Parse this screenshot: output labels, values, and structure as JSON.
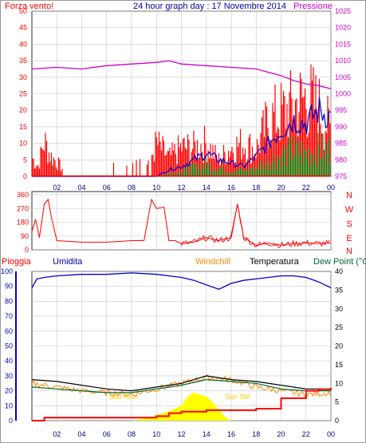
{
  "header": {
    "title": "24 hour graph day : 17 Novembre 2014",
    "left_label": "Forza vento!",
    "right_label": "Pressione"
  },
  "dir_labels": [
    "N",
    "W",
    "S",
    "E",
    "N"
  ],
  "bottom_header": {
    "pioggia": "Pioggia",
    "umidita": "Umidita",
    "windchill": "Windchill",
    "temperatura": "Temperatura",
    "dewpoint": "Dew Point (°C"
  },
  "annotations": {
    "sunrise": "Sun Rise",
    "sunset": "Sun Set"
  },
  "colors": {
    "wind": "#ff0000",
    "gust": "#ff0000",
    "wind_avg": "#0000cc",
    "wind_green": "#008000",
    "pressure": "#cc00cc",
    "direction": "#ff0000",
    "humidity": "#0000cc",
    "temperature": "#000000",
    "windchill": "#ff8800",
    "dewpoint": "#006633",
    "rain": "#ff0000",
    "rain_rate": "#ffff00",
    "grid": "#c8c8c8"
  },
  "chart_data": [
    {
      "type": "line",
      "name": "wind-pressure",
      "x_ticks": [
        "02",
        "04",
        "06",
        "08",
        "10",
        "12",
        "14",
        "16",
        "18",
        "20",
        "22",
        "00"
      ],
      "y_left_ticks": [
        0,
        5,
        10,
        15,
        20,
        25,
        30,
        35,
        40,
        45,
        50
      ],
      "y_left_range": [
        0,
        50
      ],
      "y_right_ticks": [
        975,
        980,
        985,
        990,
        995,
        1000,
        1005,
        1010,
        1015,
        1020,
        1025
      ],
      "y_right_range": [
        975,
        1025
      ],
      "pressure_hours": [
        0,
        2,
        4,
        6,
        8,
        10,
        11,
        12,
        14,
        16,
        18,
        19,
        20,
        21,
        22,
        23,
        24
      ],
      "pressure_values": [
        1007.5,
        1008,
        1007.5,
        1008.5,
        1009,
        1009.5,
        1010,
        1009,
        1008.5,
        1008,
        1007.5,
        1006.5,
        1005.5,
        1004,
        1003,
        1002.5,
        1001.5
      ],
      "gust_max_hours": [
        0,
        0.5,
        1,
        1.5,
        2,
        3,
        4,
        5,
        6,
        7,
        8,
        9,
        10,
        11,
        12,
        13,
        14,
        15,
        16,
        17,
        18,
        19,
        20,
        21,
        22,
        23,
        24
      ],
      "gust_max_values": [
        9,
        5,
        17,
        10,
        7,
        0,
        0,
        0,
        5,
        5,
        7,
        0,
        16,
        9,
        14,
        14,
        16,
        8,
        14,
        16,
        13,
        27,
        30,
        34,
        38,
        33,
        22
      ],
      "avg_hours": [
        0,
        10,
        11,
        12,
        13,
        14,
        15,
        16,
        17,
        18,
        19,
        20,
        21,
        22,
        23,
        24
      ],
      "avg_values": [
        0,
        0,
        2,
        3,
        5,
        7,
        5,
        4,
        3,
        6,
        10,
        14,
        17,
        16,
        20,
        18
      ],
      "green_hours": [
        0,
        10,
        11,
        12,
        13,
        14,
        15,
        16,
        17,
        18,
        19,
        20,
        21,
        22,
        23,
        24
      ],
      "green_values": [
        0,
        0,
        1,
        2,
        3,
        4,
        3,
        2,
        2,
        3,
        5,
        7,
        9,
        8,
        9,
        9
      ]
    },
    {
      "type": "line",
      "name": "wind-direction",
      "y_ticks": [
        0,
        90,
        180,
        270,
        360
      ],
      "y_range": [
        0,
        360
      ],
      "hours": [
        0,
        0.3,
        0.6,
        1,
        1.3,
        1.6,
        2,
        4,
        6,
        7,
        8,
        9,
        9.6,
        10,
        10.6,
        11,
        11.5,
        12,
        13,
        14,
        15,
        16,
        16.5,
        17,
        18,
        19,
        20,
        21,
        22,
        23,
        24
      ],
      "values": [
        120,
        200,
        80,
        300,
        330,
        200,
        60,
        50,
        50,
        55,
        60,
        60,
        330,
        270,
        280,
        60,
        60,
        40,
        50,
        80,
        60,
        80,
        300,
        80,
        30,
        45,
        30,
        40,
        45,
        40,
        45
      ]
    },
    {
      "type": "line",
      "name": "humidity-temperature-rain",
      "y_left_ticks": [
        0,
        10,
        20,
        30,
        40,
        50,
        60,
        70,
        80,
        90,
        100
      ],
      "y_left_range": [
        0,
        100
      ],
      "y_right_ticks": [
        0,
        5,
        10,
        15,
        20,
        25,
        30,
        35,
        40
      ],
      "y_right_range": [
        0,
        40
      ],
      "humidity_hours": [
        0,
        0.4,
        1,
        2,
        4,
        6,
        8,
        10,
        11,
        12,
        13,
        14,
        15,
        16,
        17,
        18,
        19,
        20,
        21,
        22,
        23,
        24
      ],
      "humidity_values": [
        89,
        95,
        96,
        97,
        98,
        98,
        99,
        98,
        97,
        96,
        94,
        91,
        88,
        92,
        94,
        95,
        96,
        97,
        97,
        96,
        93,
        89
      ],
      "temperature_hours": [
        0,
        2,
        4,
        6,
        8,
        10,
        12,
        14,
        16,
        18,
        20,
        22,
        24
      ],
      "temperature_values": [
        11,
        10.5,
        9.5,
        8.5,
        8,
        9,
        10,
        12,
        11,
        10.5,
        9.5,
        8.5,
        8.5
      ],
      "windchill_hours": [
        0,
        2,
        4,
        6,
        8,
        10,
        12,
        14,
        16,
        18,
        20,
        22,
        24
      ],
      "windchill_values": [
        10,
        9,
        8,
        7.5,
        7,
        8.5,
        10,
        11.5,
        11,
        9,
        8,
        7,
        7.5
      ],
      "dewpoint_hours": [
        0,
        2,
        4,
        6,
        8,
        10,
        12,
        14,
        16,
        18,
        20,
        22,
        24
      ],
      "dewpoint_values": [
        9,
        8.5,
        8,
        7.5,
        7.5,
        8.5,
        9.5,
        11,
        10.5,
        10,
        8.5,
        8,
        8
      ],
      "rain_hours": [
        0,
        1,
        4,
        8,
        10,
        11,
        12,
        14,
        16,
        18,
        20,
        22,
        23,
        24
      ],
      "rain_values": [
        0,
        2,
        2,
        2,
        3,
        5,
        6,
        7,
        7,
        8,
        15,
        20,
        21,
        22
      ],
      "rainrate_hours": [
        8,
        9,
        10,
        11,
        12,
        12.5,
        13,
        13.5,
        14,
        14.5,
        15,
        15.5,
        16
      ],
      "rainrate_values": [
        0,
        0.5,
        1.5,
        2.5,
        4,
        6.5,
        7.5,
        7,
        6.5,
        5,
        3,
        1,
        0
      ]
    }
  ]
}
